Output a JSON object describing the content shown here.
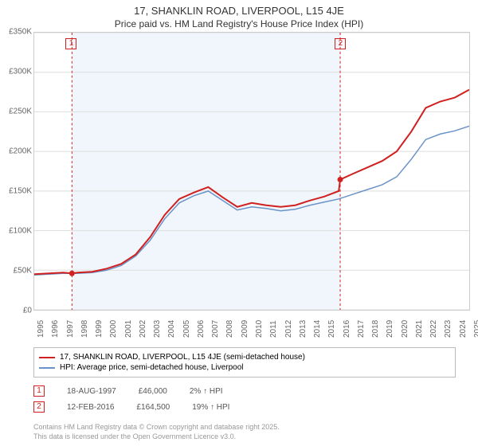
{
  "title": {
    "line1": "17, SHANKLIN ROAD, LIVERPOOL, L15 4JE",
    "line2": "Price paid vs. HM Land Registry's House Price Index (HPI)"
  },
  "chart": {
    "type": "line",
    "background_color": "#ffffff",
    "shade_color": "#f0f6fb",
    "grid_color": "#dddddd",
    "border_color": "#cccccc",
    "xlim": [
      1995,
      2025
    ],
    "ylim": [
      0,
      350000
    ],
    "ytick_step": 50000,
    "yticks": [
      "£0",
      "£50K",
      "£100K",
      "£150K",
      "£200K",
      "£250K",
      "£300K",
      "£350K"
    ],
    "xticks": [
      1995,
      1996,
      1997,
      1998,
      1999,
      2000,
      2001,
      2002,
      2003,
      2004,
      2005,
      2006,
      2007,
      2008,
      2009,
      2010,
      2011,
      2012,
      2013,
      2014,
      2015,
      2016,
      2017,
      2018,
      2019,
      2020,
      2021,
      2022,
      2023,
      2024,
      2025
    ],
    "shaded_ranges": [
      [
        1997.6,
        2016.1
      ]
    ],
    "series": [
      {
        "name": "property",
        "label": "17, SHANKLIN ROAD, LIVERPOOL, L15 4JE (semi-detached house)",
        "color": "#d02020",
        "line_width": 2,
        "data": [
          [
            1995,
            45000
          ],
          [
            1996,
            46000
          ],
          [
            1997,
            47000
          ],
          [
            1997.6,
            46000
          ],
          [
            1998,
            47000
          ],
          [
            1999,
            48000
          ],
          [
            2000,
            52000
          ],
          [
            2001,
            58000
          ],
          [
            2002,
            70000
          ],
          [
            2003,
            92000
          ],
          [
            2004,
            120000
          ],
          [
            2005,
            140000
          ],
          [
            2006,
            148000
          ],
          [
            2007,
            155000
          ],
          [
            2008,
            142000
          ],
          [
            2009,
            130000
          ],
          [
            2010,
            135000
          ],
          [
            2011,
            132000
          ],
          [
            2012,
            130000
          ],
          [
            2013,
            132000
          ],
          [
            2014,
            138000
          ],
          [
            2015,
            143000
          ],
          [
            2016,
            150000
          ],
          [
            2016.1,
            164500
          ],
          [
            2017,
            172000
          ],
          [
            2018,
            180000
          ],
          [
            2019,
            188000
          ],
          [
            2020,
            200000
          ],
          [
            2021,
            225000
          ],
          [
            2022,
            255000
          ],
          [
            2023,
            263000
          ],
          [
            2024,
            268000
          ],
          [
            2025,
            278000
          ]
        ]
      },
      {
        "name": "hpi",
        "label": "HPI: Average price, semi-detached house, Liverpool",
        "color": "#6a93c8",
        "line_width": 1.5,
        "data": [
          [
            1995,
            44000
          ],
          [
            1996,
            45000
          ],
          [
            1997,
            46000
          ],
          [
            1998,
            46000
          ],
          [
            1999,
            47000
          ],
          [
            2000,
            50000
          ],
          [
            2001,
            56000
          ],
          [
            2002,
            68000
          ],
          [
            2003,
            88000
          ],
          [
            2004,
            115000
          ],
          [
            2005,
            135000
          ],
          [
            2006,
            144000
          ],
          [
            2007,
            150000
          ],
          [
            2008,
            138000
          ],
          [
            2009,
            126000
          ],
          [
            2010,
            130000
          ],
          [
            2011,
            128000
          ],
          [
            2012,
            125000
          ],
          [
            2013,
            127000
          ],
          [
            2014,
            132000
          ],
          [
            2015,
            136000
          ],
          [
            2016,
            140000
          ],
          [
            2017,
            146000
          ],
          [
            2018,
            152000
          ],
          [
            2019,
            158000
          ],
          [
            2020,
            168000
          ],
          [
            2021,
            190000
          ],
          [
            2022,
            215000
          ],
          [
            2023,
            222000
          ],
          [
            2024,
            226000
          ],
          [
            2025,
            232000
          ]
        ]
      }
    ],
    "markers": [
      {
        "id": "1",
        "x": 1997.6,
        "y": 46000,
        "dot_color": "#d02020"
      },
      {
        "id": "2",
        "x": 2016.1,
        "y": 164500,
        "dot_color": "#d02020"
      }
    ],
    "title_fontsize": 13,
    "label_fontsize": 10
  },
  "legend": {
    "items": [
      {
        "color": "#d02020",
        "text": "17, SHANKLIN ROAD, LIVERPOOL, L15 4JE (semi-detached house)"
      },
      {
        "color": "#6a93c8",
        "text": "HPI: Average price, semi-detached house, Liverpool"
      }
    ]
  },
  "sales": [
    {
      "marker": "1",
      "date": "18-AUG-1997",
      "price": "£46,000",
      "diff": "2% ↑ HPI"
    },
    {
      "marker": "2",
      "date": "12-FEB-2016",
      "price": "£164,500",
      "diff": "19% ↑ HPI"
    }
  ],
  "attribution": {
    "line1": "Contains HM Land Registry data © Crown copyright and database right 2025.",
    "line2": "This data is licensed under the Open Government Licence v3.0."
  }
}
